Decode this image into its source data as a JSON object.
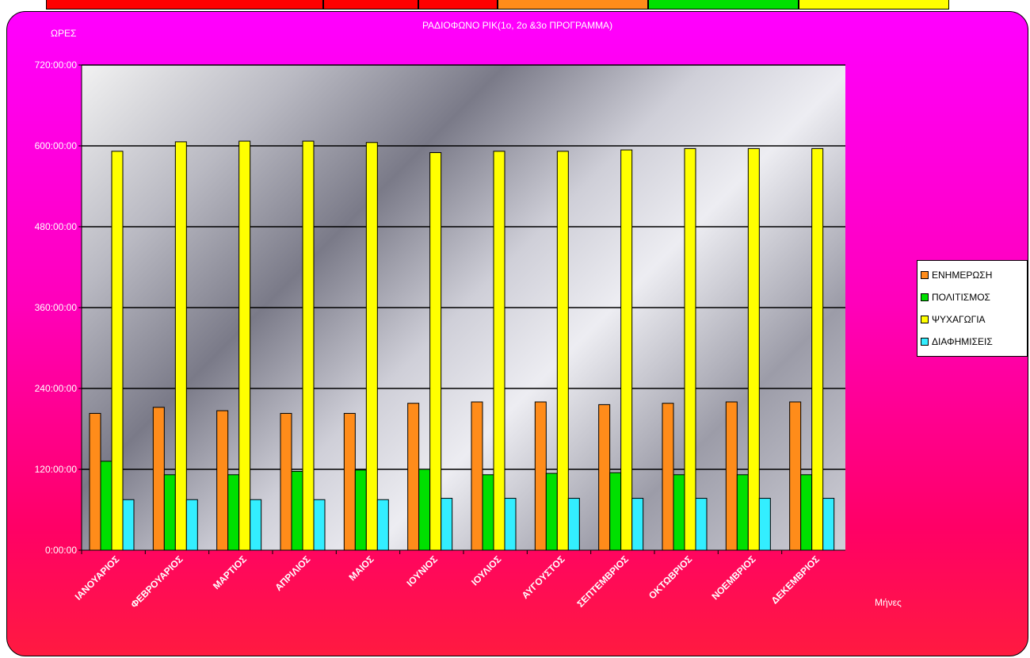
{
  "top_strip": {
    "colors": [
      "#ff0000",
      "#ff0000",
      "#ff0000",
      "#ff8c1a",
      "#00e000",
      "#ffff00"
    ]
  },
  "chart_data": {
    "type": "bar",
    "title": "ΡΑΔΙΟΦΩΝΟ ΡΙΚ(1ο, 2ο &3ο ΠΡΟΓΡΑΜΜΑ)",
    "ylabel": "ΩΡΕΣ",
    "xlabel": "Μήνες",
    "y_unit": "hours",
    "ylim": [
      0,
      720
    ],
    "ytick_values": [
      0,
      120,
      240,
      360,
      480,
      600,
      720
    ],
    "ytick_labels": [
      "0:00:00",
      "120:00:00",
      "240:00:00",
      "360:00:00",
      "480:00:00",
      "600:00:00",
      "720:00:00"
    ],
    "categories": [
      "ΙΑΝΟΥΑΡΙΟΣ",
      "ΦΕΒΡΟΥΑΡΙΟΣ",
      "ΜΑΡΤΙΟΣ",
      "ΑΠΡΙΛΙΟΣ",
      "ΜΑΙΟΣ",
      "ΙΟΥΝΙΟΣ",
      "ΙΟΥΛΙΟΣ",
      "ΑΥΓΟΥΣΤΟΣ",
      "ΣΕΠΤΕΜΒΡΙΟΣ",
      "ΟΚΤΩΒΡΙΟΣ",
      "ΝΟΕΜΒΡΙΟΣ",
      "ΔΕΚΕΜΒΡΙΟΣ"
    ],
    "series": [
      {
        "name": "ΕΝΗΜΕΡΩΣΗ",
        "color": "#ff8c1a",
        "values": [
          203,
          212,
          207,
          203,
          203,
          218,
          220,
          220,
          216,
          218,
          220,
          220
        ]
      },
      {
        "name": "ΠΟΛΙΤΙΣΜΟΣ",
        "color": "#00e000",
        "values": [
          132,
          112,
          112,
          117,
          119,
          120,
          112,
          114,
          115,
          112,
          112,
          112
        ]
      },
      {
        "name": "ΨΥΧΑΓΩΓΙΑ",
        "color": "#ffff00",
        "values": [
          592,
          606,
          607,
          607,
          605,
          590,
          592,
          592,
          594,
          596,
          596,
          596
        ]
      },
      {
        "name": "ΔΙΑΦΗΜΙΣΕΙΣ",
        "color": "#33eeff",
        "values": [
          75,
          75,
          75,
          75,
          75,
          77,
          77,
          77,
          77,
          77,
          77,
          77
        ]
      }
    ],
    "grid": true,
    "legend_position": "right"
  }
}
